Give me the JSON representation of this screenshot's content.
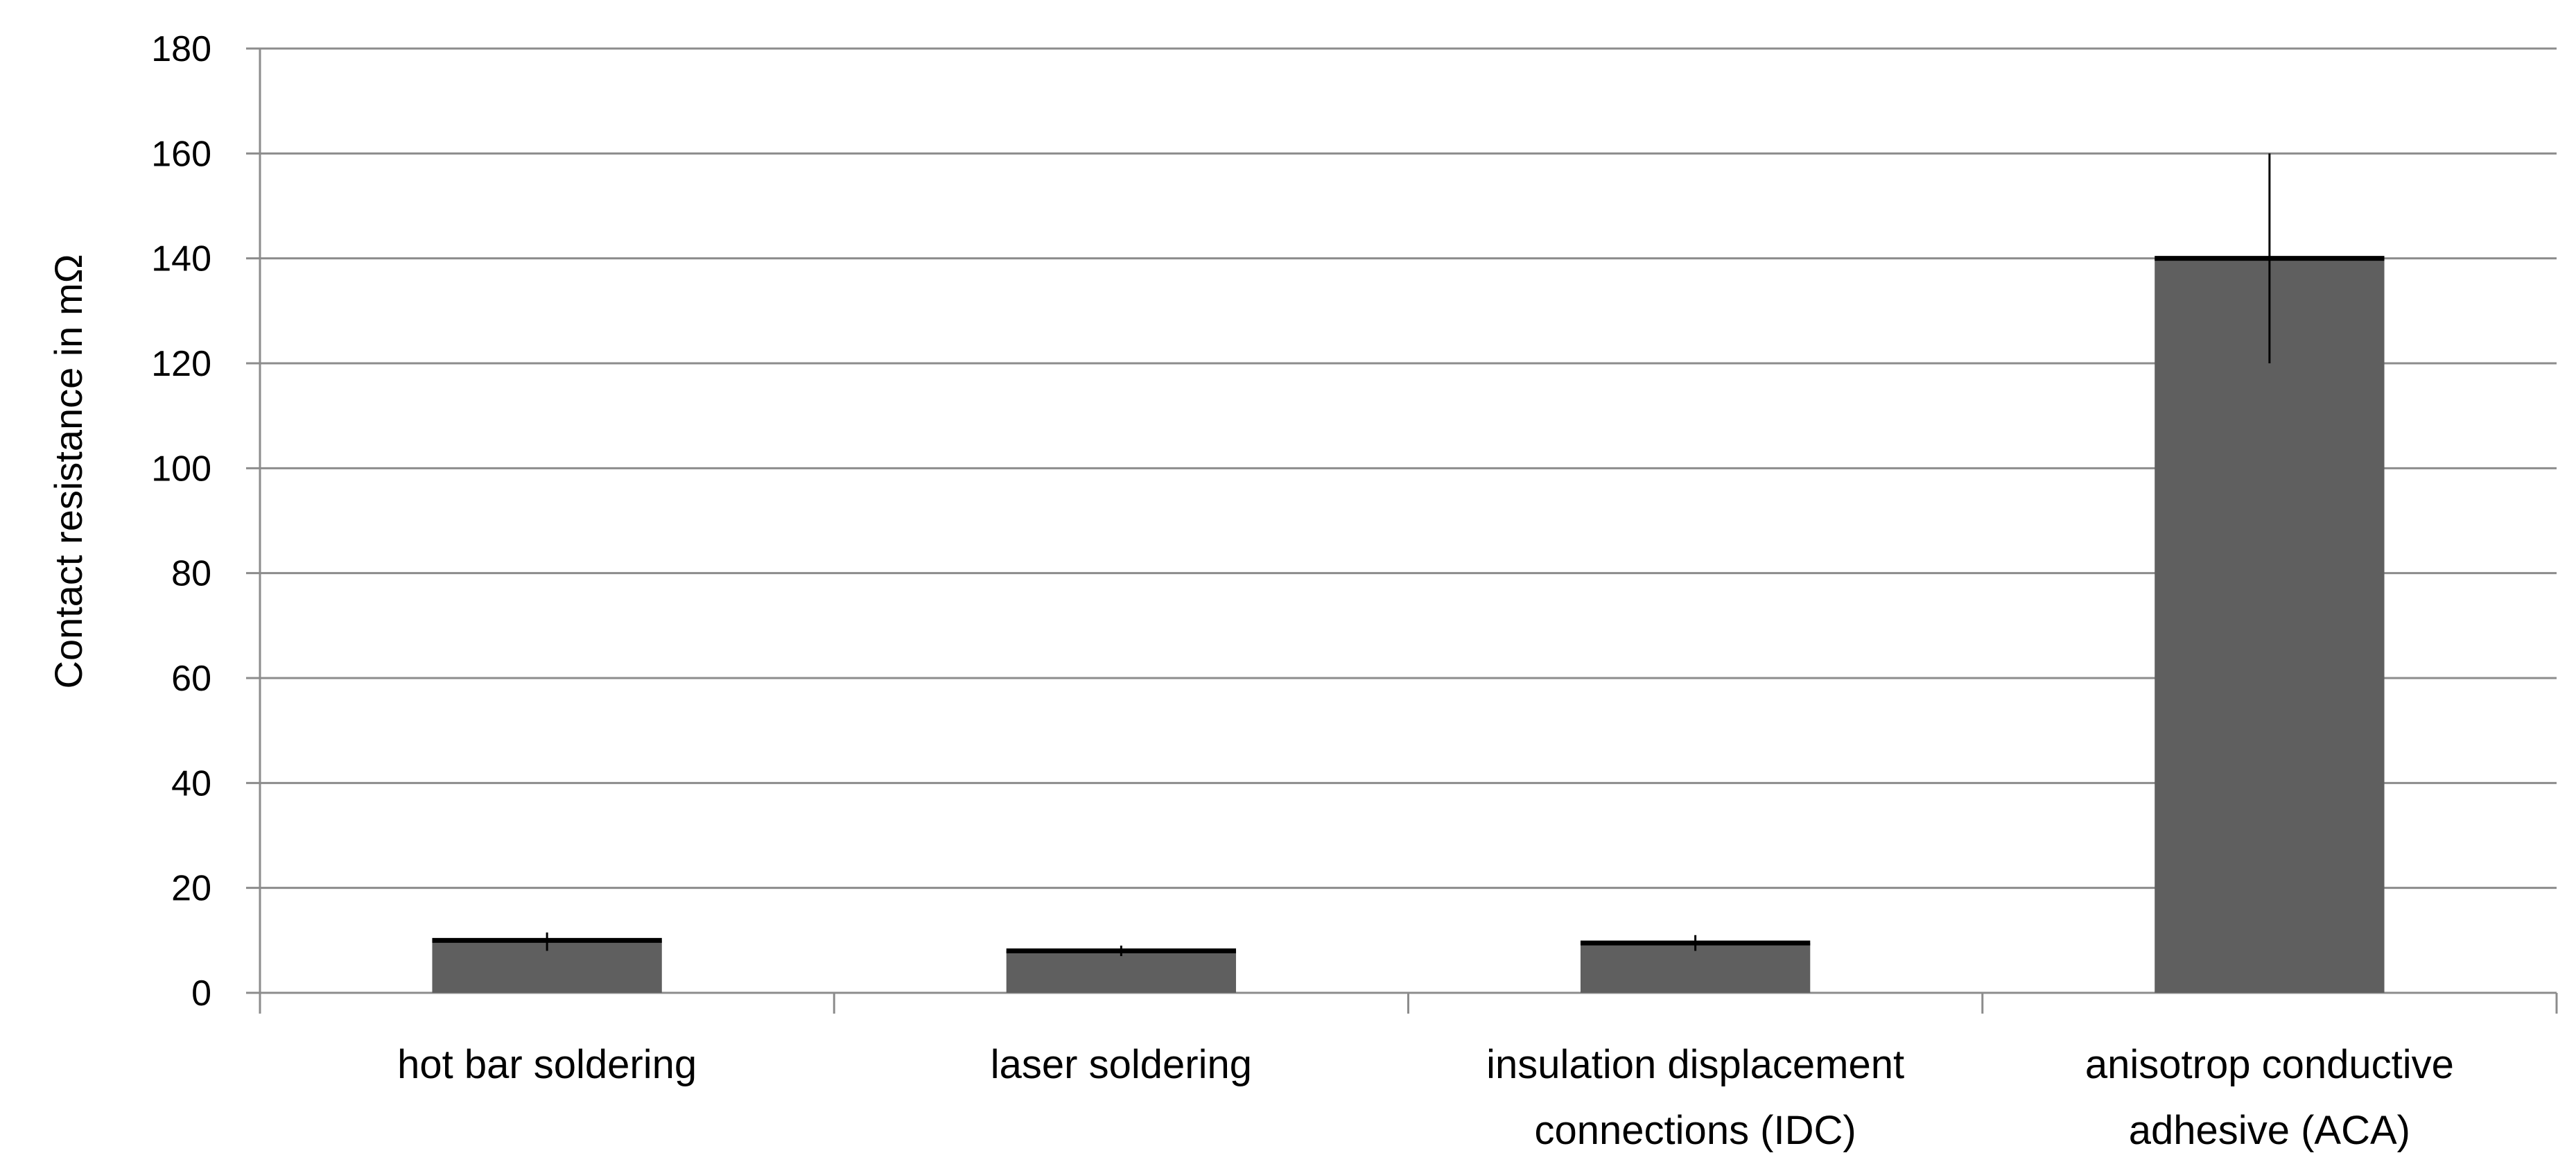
{
  "chart_data": {
    "type": "bar",
    "title": "",
    "xlabel": "",
    "ylabel": "Contact resistance in mΩ",
    "ylim": [
      0,
      180
    ],
    "yticks": [
      0,
      20,
      40,
      60,
      80,
      100,
      120,
      140,
      160,
      180
    ],
    "grid": true,
    "categories": [
      [
        "hot bar soldering"
      ],
      [
        "laser soldering"
      ],
      [
        "insulation displacement",
        "connections (IDC)"
      ],
      [
        "anisotrop conductive",
        "adhesive (ACA)"
      ]
    ],
    "values": [
      10,
      8,
      9.5,
      140
    ],
    "error_upper": [
      11.5,
      9,
      11,
      160
    ],
    "error_lower": [
      8,
      7,
      8,
      120
    ],
    "colors": {
      "bar": "#5f5f5f",
      "bar_top": "#000000",
      "grid": "#8c8c8c",
      "axis": "#8c8c8c",
      "error": "#000000"
    }
  }
}
